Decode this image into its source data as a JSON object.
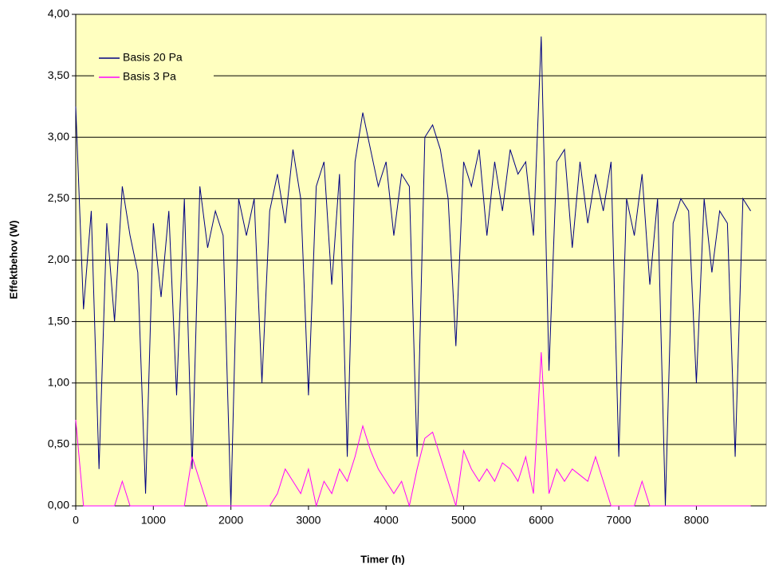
{
  "chart_data": {
    "type": "line",
    "xlabel": "Timer (h)",
    "ylabel": "Effektbehov (W)",
    "x": [
      0,
      100,
      200,
      300,
      400,
      500,
      600,
      700,
      800,
      900,
      1000,
      1100,
      1200,
      1300,
      1400,
      1500,
      1600,
      1700,
      1800,
      1900,
      2000,
      2100,
      2200,
      2300,
      2400,
      2500,
      2600,
      2700,
      2800,
      2900,
      3000,
      3100,
      3200,
      3300,
      3400,
      3500,
      3600,
      3700,
      3800,
      3900,
      4000,
      4100,
      4200,
      4300,
      4400,
      4500,
      4600,
      4700,
      4800,
      4900,
      5000,
      5100,
      5200,
      5300,
      5400,
      5500,
      5600,
      5700,
      5800,
      5900,
      6000,
      6100,
      6200,
      6300,
      6400,
      6500,
      6600,
      6700,
      6800,
      6900,
      7000,
      7100,
      7200,
      7300,
      7400,
      7500,
      7600,
      7700,
      7800,
      7900,
      8000,
      8100,
      8200,
      8300,
      8400,
      8500,
      8600,
      8700
    ],
    "series": [
      {
        "name": "Basis 20 Pa",
        "color": "#000080",
        "values": [
          3.25,
          1.6,
          2.4,
          0.3,
          2.3,
          1.5,
          2.6,
          2.2,
          1.9,
          0.1,
          2.3,
          1.7,
          2.4,
          0.9,
          2.5,
          0.3,
          2.6,
          2.1,
          2.4,
          2.2,
          0.0,
          2.5,
          2.2,
          2.5,
          1.0,
          2.4,
          2.7,
          2.3,
          2.9,
          2.5,
          0.9,
          2.6,
          2.8,
          1.8,
          2.7,
          0.4,
          2.8,
          3.2,
          2.9,
          2.6,
          2.8,
          2.2,
          2.7,
          2.6,
          0.4,
          3.0,
          3.1,
          2.9,
          2.5,
          1.3,
          2.8,
          2.6,
          2.9,
          2.2,
          2.8,
          2.4,
          2.9,
          2.7,
          2.8,
          2.2,
          3.82,
          1.1,
          2.8,
          2.9,
          2.1,
          2.8,
          2.3,
          2.7,
          2.4,
          2.8,
          0.4,
          2.5,
          2.2,
          2.7,
          1.8,
          2.5,
          0.0,
          2.3,
          2.5,
          2.4,
          1.0,
          2.5,
          1.9,
          2.4,
          2.3,
          0.4,
          2.5,
          2.4
        ]
      },
      {
        "name": "Basis 3 Pa",
        "color": "#ff00ff",
        "values": [
          0.7,
          0,
          0,
          0,
          0,
          0,
          0.2,
          0,
          0,
          0,
          0,
          0,
          0,
          0,
          0,
          0.4,
          0.2,
          0,
          0,
          0,
          0,
          0,
          0,
          0,
          0,
          0,
          0.1,
          0.3,
          0.2,
          0.1,
          0.3,
          0.0,
          0.2,
          0.1,
          0.3,
          0.2,
          0.4,
          0.65,
          0.45,
          0.3,
          0.2,
          0.1,
          0.2,
          0.0,
          0.3,
          0.55,
          0.6,
          0.4,
          0.2,
          0.0,
          0.45,
          0.3,
          0.2,
          0.3,
          0.2,
          0.35,
          0.3,
          0.2,
          0.4,
          0.1,
          1.25,
          0.1,
          0.3,
          0.2,
          0.3,
          0.25,
          0.2,
          0.4,
          0.2,
          0.0,
          0,
          0,
          0,
          0.2,
          0,
          0,
          0,
          0,
          0,
          0,
          0,
          0,
          0,
          0,
          0,
          0,
          0,
          0
        ]
      }
    ],
    "xlim": [
      0,
      8900
    ],
    "xticks": [
      0,
      1000,
      2000,
      3000,
      4000,
      5000,
      6000,
      7000,
      8000
    ],
    "ylim": [
      0,
      4
    ],
    "yticks": [
      {
        "value": 0,
        "label": "0,00"
      },
      {
        "value": 0.5,
        "label": "0,50"
      },
      {
        "value": 1,
        "label": "1,00"
      },
      {
        "value": 1.5,
        "label": "1,50"
      },
      {
        "value": 2,
        "label": "2,00"
      },
      {
        "value": 2.5,
        "label": "2,50"
      },
      {
        "value": 3,
        "label": "3,00"
      },
      {
        "value": 3.5,
        "label": "3,50"
      },
      {
        "value": 4,
        "label": "4,00"
      }
    ],
    "grid": true,
    "legend": "upper left",
    "background": "#ffffc0"
  }
}
